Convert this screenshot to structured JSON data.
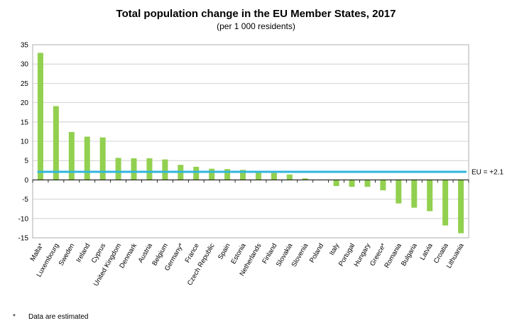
{
  "chart_data": {
    "type": "bar",
    "title": "Total population change in the EU Member States, 2017",
    "subtitle": "(per 1 000 residents)",
    "xlabel": "",
    "ylabel": "",
    "ylim": [
      -15,
      35
    ],
    "yticks": [
      35,
      30,
      25,
      20,
      15,
      10,
      5,
      0,
      -5,
      -10,
      -15
    ],
    "grid": true,
    "bar_color": "#92d050",
    "categories": [
      "Malta*",
      "Luxembourg",
      "Sweden",
      "Ireland",
      "Cyprus",
      "United Kingdom",
      "Denmark",
      "Austria",
      "Belgium",
      "Germany*",
      "France",
      "Czech Republic",
      "Spain",
      "Estonia",
      "Netherlands",
      "Finland",
      "Slovakia",
      "Slovenia",
      "Poland",
      "Italy",
      "Portugal",
      "Hungary",
      "Greece*",
      "Romania",
      "Bulgaria",
      "Latvia",
      "Croatia",
      "Lithuania"
    ],
    "values": [
      32.9,
      19.1,
      12.4,
      11.2,
      11.0,
      5.7,
      5.6,
      5.6,
      5.3,
      3.9,
      3.4,
      2.9,
      2.8,
      2.6,
      2.0,
      1.8,
      1.4,
      0.4,
      0.0,
      -1.6,
      -1.8,
      -1.8,
      -2.7,
      -6.1,
      -7.2,
      -8.1,
      -11.8,
      -13.8
    ],
    "reference_line": {
      "value": 2.1,
      "label": "EU = +2.1",
      "color": "#31b6dd"
    }
  },
  "footnote": {
    "mark": "*",
    "text": "Data are estimated"
  }
}
